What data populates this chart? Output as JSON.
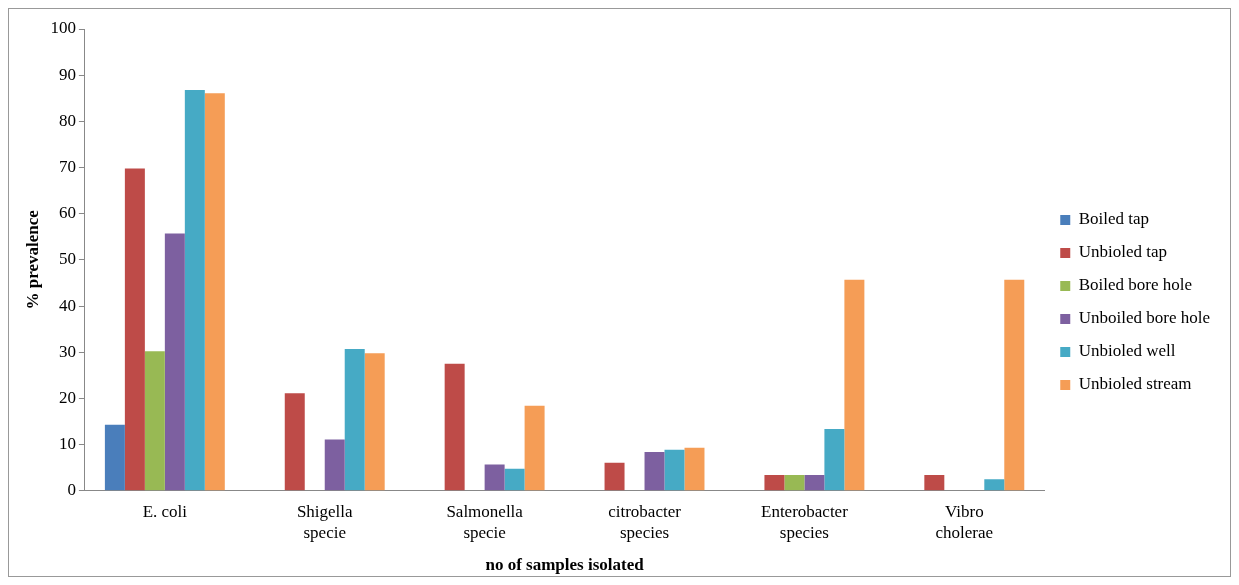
{
  "chart_data": {
    "type": "bar",
    "xlabel": "no of samples isolated",
    "ylabel": "% prevalence",
    "categories": [
      "E. coli",
      "Shigella specie",
      "Salmonella specie",
      "citrobacter species",
      "Enterobacter species",
      "Vibro cholerae"
    ],
    "series": [
      {
        "name": "Boiled tap",
        "color": "#4a7ebb",
        "values": [
          14.3,
          0,
          0,
          0,
          0,
          0
        ]
      },
      {
        "name": "Unbioled tap",
        "color": "#be4b48",
        "values": [
          69.8,
          21.1,
          27.5,
          6.1,
          3.4,
          3.4
        ]
      },
      {
        "name": "Boiled bore hole",
        "color": "#98b954",
        "values": [
          30.2,
          0,
          0,
          0,
          3.4,
          0
        ]
      },
      {
        "name": "Unboiled bore hole",
        "color": "#7d60a0",
        "values": [
          55.7,
          11.1,
          5.7,
          8.4,
          3.4,
          0
        ]
      },
      {
        "name": "Unbioled well",
        "color": "#46aac5",
        "values": [
          86.8,
          30.7,
          4.8,
          8.9,
          13.4,
          2.5
        ]
      },
      {
        "name": "Unbioled stream",
        "color": "#f59d56",
        "values": [
          86.1,
          29.8,
          18.4,
          9.3,
          45.7,
          45.7
        ]
      }
    ],
    "ylim": [
      0,
      100
    ],
    "yticks": [
      0,
      10,
      20,
      30,
      40,
      50,
      60,
      70,
      80,
      90,
      100
    ],
    "grid": false,
    "legend": "right"
  }
}
